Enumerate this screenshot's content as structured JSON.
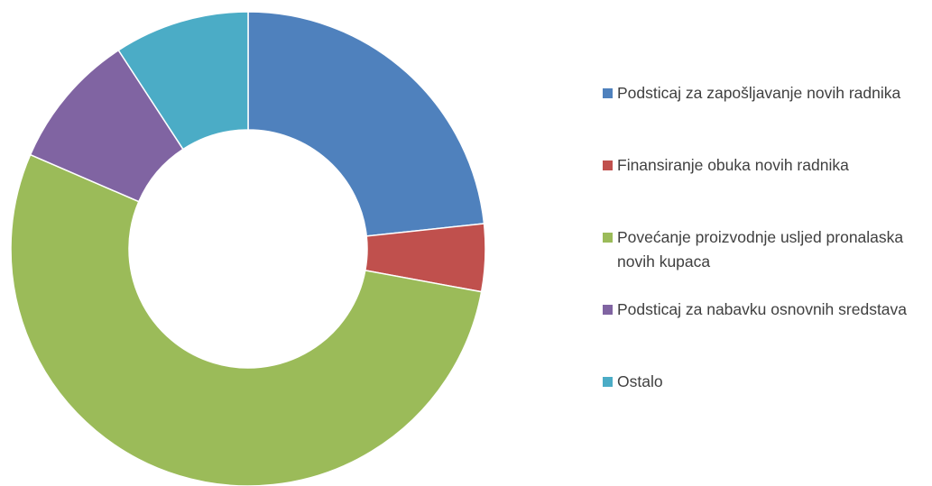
{
  "chart_data": {
    "type": "donut",
    "categories": [
      "Podsticaj za zapošljavanje novih radnika",
      "Finansiranje obuka novih radnika",
      "Povećanje proizvodnje usljed pronalaska novih kupaca",
      "Podsticaj za nabavku osnovnih sredstava",
      "Ostalo"
    ],
    "values": [
      23.3,
      4.6,
      53.6,
      9.3,
      9.2
    ],
    "colors": [
      "#4f81bd",
      "#c0504d",
      "#9bbb59",
      "#8064a2",
      "#4bacc6"
    ],
    "legend": "right"
  }
}
